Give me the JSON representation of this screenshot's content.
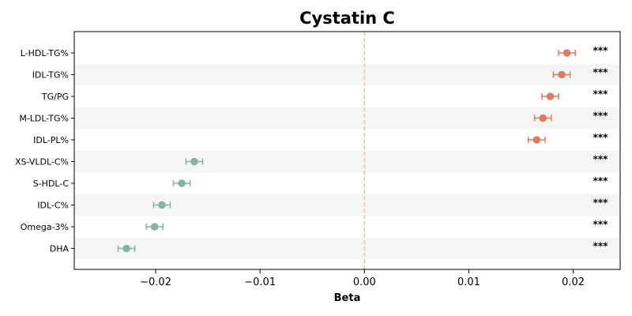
{
  "chart_data": {
    "type": "forest",
    "title": "Cystatin C",
    "xlabel": "Beta",
    "ylabel": "",
    "xlim": [
      -0.0278,
      0.0245
    ],
    "xticks": [
      -0.02,
      -0.01,
      0.0,
      0.01,
      0.02
    ],
    "xtick_labels": [
      "−0.02",
      "−0.01",
      "0.00",
      "0.01",
      "0.02"
    ],
    "reference_line": 0.0,
    "alternating_row_shading": true,
    "colors": {
      "positive": "#E07B5F",
      "negative": "#82B59D",
      "reference": "#F5C27A",
      "row_shade": "#F5F5F5"
    },
    "rows": [
      {
        "label": "L-HDL-TG%",
        "beta": 0.0194,
        "ci_low": 0.0186,
        "ci_high": 0.0202,
        "sig": "***"
      },
      {
        "label": "IDL-TG%",
        "beta": 0.0189,
        "ci_low": 0.0181,
        "ci_high": 0.0197,
        "sig": "***"
      },
      {
        "label": "TG/PG",
        "beta": 0.0178,
        "ci_low": 0.017,
        "ci_high": 0.0186,
        "sig": "***"
      },
      {
        "label": "M-LDL-TG%",
        "beta": 0.0171,
        "ci_low": 0.0163,
        "ci_high": 0.0179,
        "sig": "***"
      },
      {
        "label": "IDL-PL%",
        "beta": 0.0165,
        "ci_low": 0.0157,
        "ci_high": 0.0173,
        "sig": "***"
      },
      {
        "label": "XS-VLDL-C%",
        "beta": -0.0163,
        "ci_low": -0.0171,
        "ci_high": -0.0155,
        "sig": "***"
      },
      {
        "label": "S-HDL-C",
        "beta": -0.0175,
        "ci_low": -0.0183,
        "ci_high": -0.0167,
        "sig": "***"
      },
      {
        "label": "IDL-C%",
        "beta": -0.0194,
        "ci_low": -0.0202,
        "ci_high": -0.0186,
        "sig": "***"
      },
      {
        "label": "Omega-3%",
        "beta": -0.0201,
        "ci_low": -0.0209,
        "ci_high": -0.0193,
        "sig": "***"
      },
      {
        "label": "DHA",
        "beta": -0.0228,
        "ci_low": -0.0236,
        "ci_high": -0.022,
        "sig": "***"
      }
    ]
  }
}
